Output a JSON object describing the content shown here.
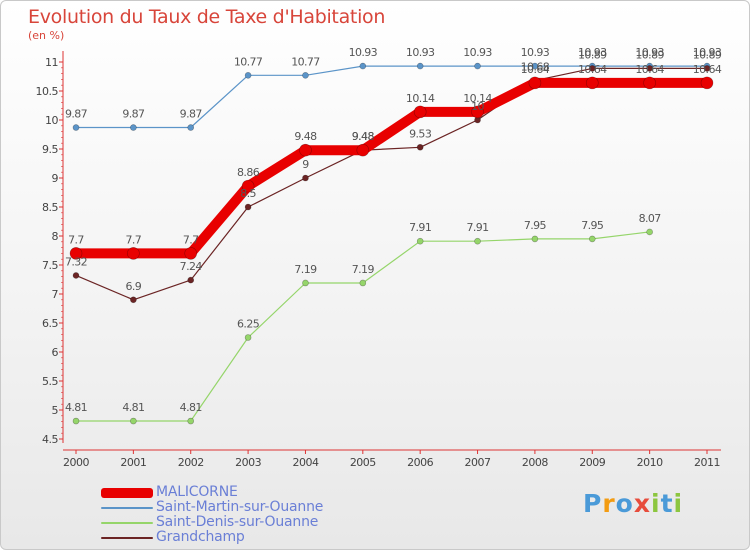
{
  "title": "Evolution du Taux de Taxe d'Habitation",
  "subtitle": "(en %)",
  "logo": {
    "text": "Proxiti",
    "colors": [
      "#4a9ad8",
      "#f39c12",
      "#4a9ad8",
      "#e74c3c",
      "#8cc63f",
      "#4a9ad8",
      "#8cc63f"
    ]
  },
  "chart_data": {
    "type": "line",
    "x": [
      "2000",
      "2001",
      "2002",
      "2003",
      "2004",
      "2005",
      "2006",
      "2007",
      "2008",
      "2009",
      "2010",
      "2011"
    ],
    "ylim": [
      4.5,
      11
    ],
    "yticks": [
      "4.5",
      "5",
      "5.5",
      "6",
      "6.5",
      "7",
      "7.5",
      "8",
      "8.5",
      "9",
      "9.5",
      "10",
      "10.5",
      "11"
    ],
    "grid": false,
    "series": [
      {
        "name": "Saint-Martin-sur-Ouanne",
        "color": "#5b94c8",
        "width": 1.2,
        "marker": 3,
        "values": [
          9.87,
          9.87,
          9.87,
          10.77,
          10.77,
          10.93,
          10.93,
          10.93,
          10.93,
          10.93,
          10.93,
          10.93
        ],
        "labels": [
          "9.87",
          "9.87",
          "9.87",
          "10.77",
          "10.77",
          "10.93",
          "10.93",
          "10.93",
          "10.93",
          "10.93",
          "10.93",
          "10.93"
        ]
      },
      {
        "name": "Saint-Denis-sur-Ouanne",
        "color": "#95d56a",
        "width": 1.2,
        "marker": 3,
        "values": [
          4.81,
          4.81,
          4.81,
          6.25,
          7.19,
          7.19,
          7.91,
          7.91,
          7.95,
          7.95,
          8.07,
          null
        ],
        "labels": [
          "4.81",
          "4.81",
          "4.81",
          "6.25",
          "7.19",
          "7.19",
          "7.91",
          "7.91",
          "7.95",
          "7.95",
          "8.07",
          ""
        ]
      },
      {
        "name": "Grandchamp",
        "color": "#6b2424",
        "width": 1.2,
        "marker": 3,
        "values": [
          7.32,
          6.9,
          7.24,
          8.5,
          9,
          9.48,
          9.53,
          10,
          10.68,
          10.89,
          10.89,
          10.89
        ],
        "labels": [
          "7.32",
          "6.9",
          "7.24",
          "8.5",
          "9",
          "9.48",
          "9.53",
          "10",
          "10.68",
          "10.89",
          "10.89",
          "10.89"
        ]
      },
      {
        "name": "MALICORNE",
        "color": "#e80000",
        "width": 10,
        "marker": 6,
        "values": [
          7.7,
          7.7,
          7.7,
          8.86,
          9.48,
          9.48,
          10.14,
          10.14,
          10.64,
          10.64,
          10.64,
          10.64
        ],
        "labels": [
          "7.7",
          "7.7",
          "7.7",
          "8.86",
          "9.48",
          "9.48",
          "10.14",
          "10.14",
          "10.64",
          "10.64",
          "10.64",
          "10.64"
        ]
      }
    ],
    "legend": [
      {
        "name": "MALICORNE",
        "color": "#e80000",
        "thick": true
      },
      {
        "name": "Saint-Martin-sur-Ouanne",
        "color": "#5b94c8",
        "thick": false
      },
      {
        "name": "Saint-Denis-sur-Ouanne",
        "color": "#95d56a",
        "thick": false
      },
      {
        "name": "Grandchamp",
        "color": "#6b2424",
        "thick": false
      }
    ],
    "legend_position": "bottom-left"
  }
}
